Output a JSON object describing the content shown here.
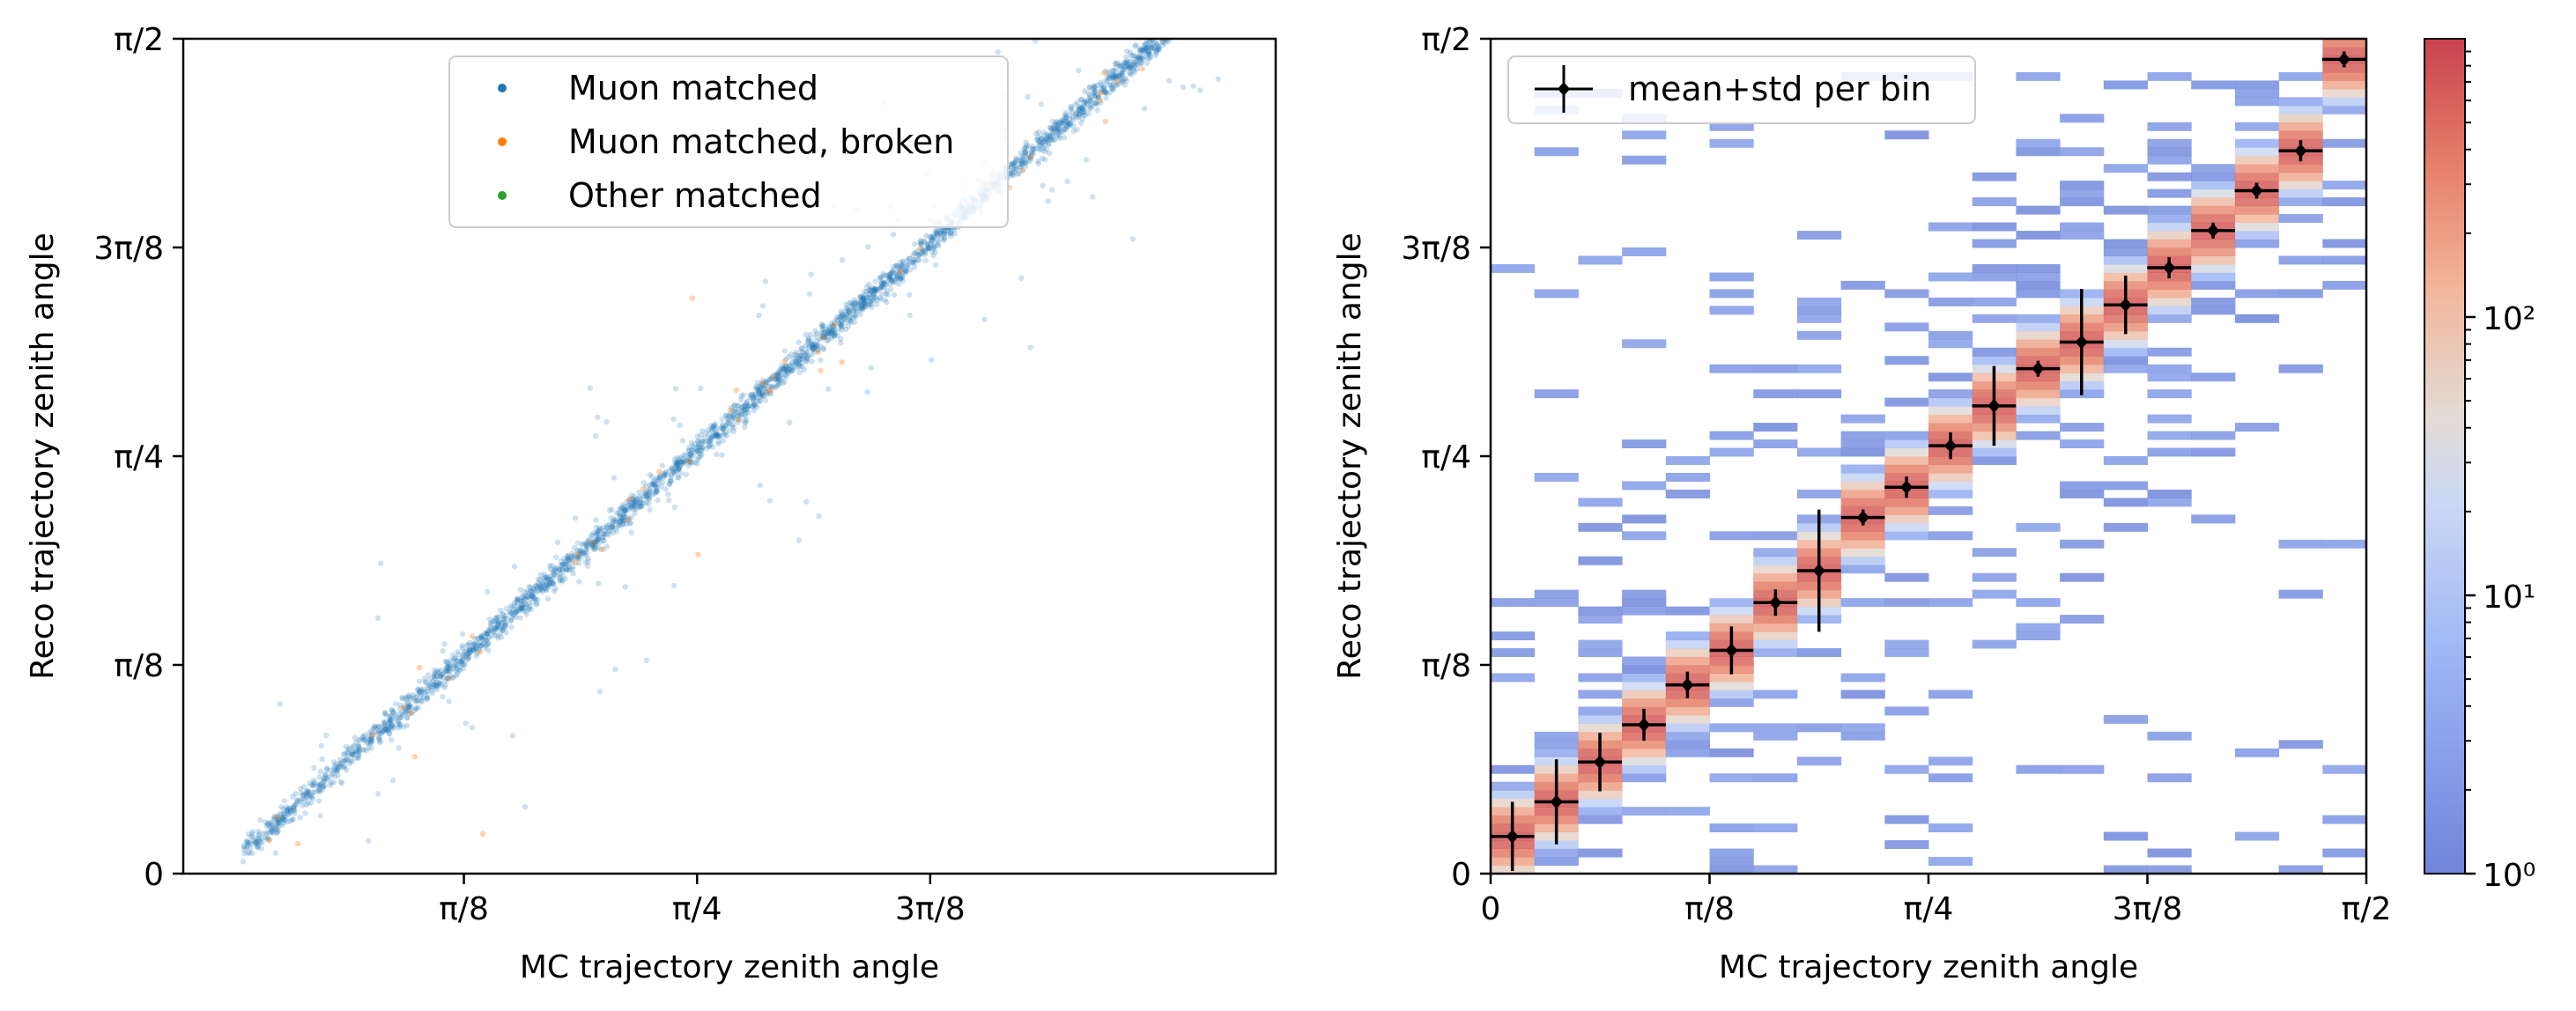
{
  "chart_data": [
    {
      "type": "scatter",
      "xlabel": "MC trajectory zenith angle",
      "ylabel": "Reco trajectory zenith angle",
      "xlim": [
        -0.08,
        1.76
      ],
      "ylim": [
        0,
        1.5708
      ],
      "x_tick_values": [
        0.3927,
        0.7854,
        1.1781
      ],
      "x_tick_labels": [
        "π/8",
        "π/4",
        "3π/8"
      ],
      "y_tick_values": [
        0,
        0.3927,
        0.7854,
        1.1781,
        1.5708
      ],
      "y_tick_labels": [
        "0",
        "π/8",
        "π/4",
        "3π/8",
        "π/2"
      ],
      "legend": {
        "placement": "upper-center"
      },
      "series": [
        {
          "name": "Muon matched",
          "color": "#1f77b4",
          "trend": {
            "x_range": [
              0.02,
              1.7
            ],
            "slope": 0.99,
            "intercept": 0.02
          },
          "approx_points": 3000
        },
        {
          "name": "Muon matched, broken",
          "color": "#ff7f0e",
          "trend": {
            "x_range": [
              0.05,
              1.65
            ],
            "slope": 0.99,
            "intercept": 0.02
          },
          "approx_points": 60
        },
        {
          "name": "Other matched",
          "color": "#2ca02c",
          "trend": null,
          "approx_points": 0
        }
      ]
    },
    {
      "type": "heatmap",
      "xlabel": "MC trajectory zenith angle",
      "ylabel": "Reco trajectory zenith angle",
      "xlim": [
        0,
        1.5708
      ],
      "ylim": [
        0,
        1.5708
      ],
      "x_tick_values": [
        0,
        0.3927,
        0.7854,
        1.1781,
        1.5708
      ],
      "x_tick_labels": [
        "0",
        "π/8",
        "π/4",
        "3π/8",
        "π/2"
      ],
      "y_tick_values": [
        0,
        0.3927,
        0.7854,
        1.1781,
        1.5708
      ],
      "y_tick_labels": [
        "0",
        "π/8",
        "π/4",
        "3π/8",
        "π/2"
      ],
      "colorbar": {
        "scale": "log",
        "range": [
          1,
          1000
        ],
        "tick_values": [
          1,
          10,
          100
        ],
        "tick_labels": [
          "10⁰",
          "10¹",
          "10²"
        ],
        "colormap": "coolwarm"
      },
      "legend": {
        "placement": "upper-left"
      },
      "profile": {
        "name": "mean+std per bin",
        "color": "#000000",
        "bin_half_width": 0.0393,
        "x": [
          0.039,
          0.118,
          0.196,
          0.275,
          0.353,
          0.432,
          0.511,
          0.589,
          0.668,
          0.746,
          0.825,
          0.903,
          0.982,
          1.06,
          1.139,
          1.217,
          1.296,
          1.374,
          1.453,
          1.531
        ],
        "mean": [
          0.07,
          0.135,
          0.21,
          0.28,
          0.355,
          0.42,
          0.51,
          0.57,
          0.67,
          0.727,
          0.805,
          0.88,
          0.95,
          1.0,
          1.07,
          1.14,
          1.21,
          1.285,
          1.36,
          1.532
        ],
        "std": [
          0.065,
          0.08,
          0.055,
          0.03,
          0.025,
          0.045,
          0.025,
          0.115,
          0.015,
          0.02,
          0.025,
          0.075,
          0.015,
          0.1,
          0.055,
          0.02,
          0.015,
          0.015,
          0.02,
          0.015
        ]
      }
    }
  ]
}
